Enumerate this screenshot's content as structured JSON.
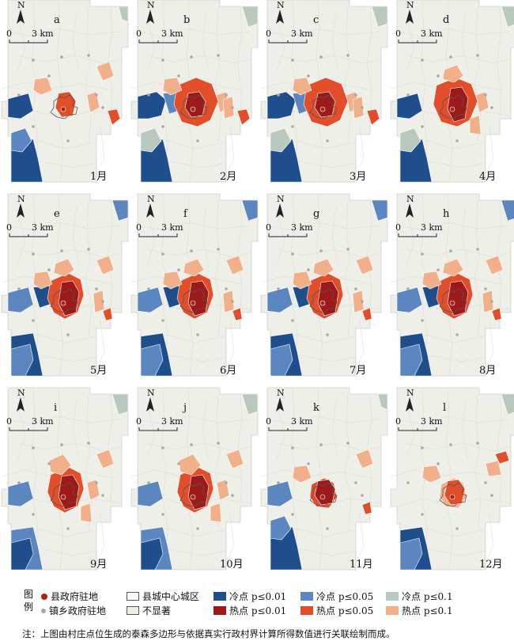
{
  "months": [
    {
      "letter": "a",
      "label": "1月",
      "pattern": 1
    },
    {
      "letter": "b",
      "label": "2月",
      "pattern": 2
    },
    {
      "letter": "c",
      "label": "3月",
      "pattern": 2
    },
    {
      "letter": "d",
      "label": "4月",
      "pattern": 3
    },
    {
      "letter": "e",
      "label": "5月",
      "pattern": 4
    },
    {
      "letter": "f",
      "label": "6月",
      "pattern": 4
    },
    {
      "letter": "g",
      "label": "7月",
      "pattern": 4
    },
    {
      "letter": "h",
      "label": "8月",
      "pattern": 4
    },
    {
      "letter": "i",
      "label": "9月",
      "pattern": 5
    },
    {
      "letter": "j",
      "label": "10月",
      "pattern": 5
    },
    {
      "letter": "k",
      "label": "11月",
      "pattern": 6
    },
    {
      "letter": "l",
      "label": "12月",
      "pattern": 7
    }
  ],
  "north_label": "N",
  "scale": {
    "zero": "0",
    "label": "3 km"
  },
  "legend": {
    "title_line1": "图",
    "title_line2": "例",
    "county_seat": "县政府驻地",
    "town_seat": "镇乡政府驻地",
    "urban_area": "县城中心城区",
    "not_significant": "不显著",
    "cold_001": "冷点 p≤0.01",
    "cold_005": "冷点 p≤0.05",
    "cold_01": "冷点 p≤0.1",
    "hot_001": "热点 p≤0.01",
    "hot_005": "热点 p≤0.05",
    "hot_01": "热点 p≤0.1"
  },
  "note": "注：上图由村庄点位生成的泰森多边形与依据真实行政村界计算所得数值进行关联绘制而成。",
  "colors": {
    "background_fill": "#f3f3ef",
    "cell_border": "#d9d9d4",
    "county_seat": "#a3261b",
    "town_seat": "#a8a8a8",
    "not_significant": "#efefe9",
    "cold_001": "#1f4e8c",
    "cold_005": "#5b86c0",
    "cold_01": "#b9c9bd",
    "hot_001": "#9e1a1a",
    "hot_005": "#e24d2a",
    "hot_01": "#f2b08a"
  }
}
